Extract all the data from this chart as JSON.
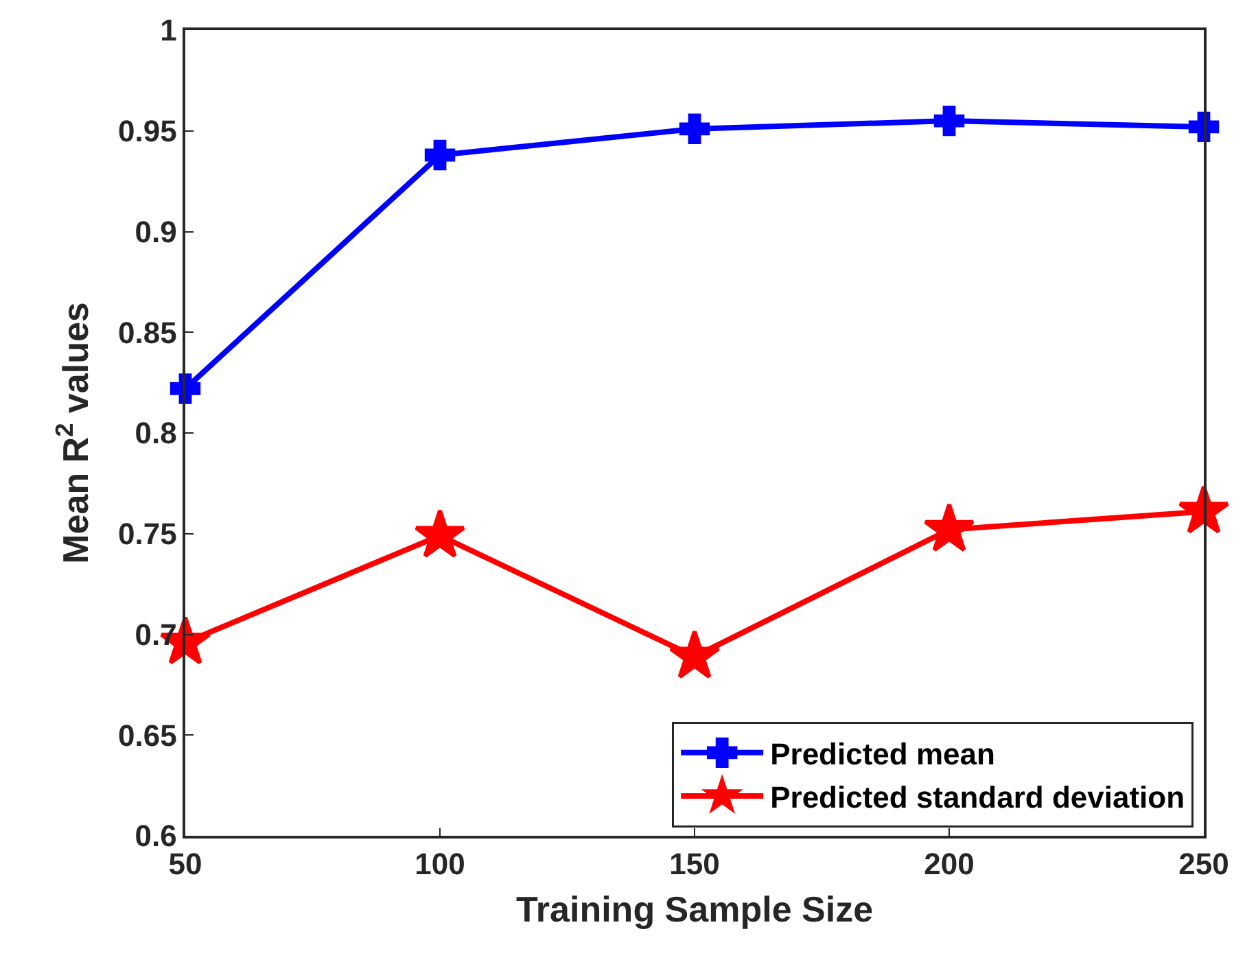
{
  "chart_data": {
    "type": "line",
    "xlabel": "Training Sample Size",
    "ylabel": "Mean R$^{2}$ values",
    "x": [
      50,
      100,
      150,
      200,
      250
    ],
    "series": [
      {
        "name": "Predicted mean",
        "color": "#0000ff",
        "marker": "cross",
        "values": [
          0.822,
          0.938,
          0.951,
          0.955,
          0.952
        ]
      },
      {
        "name": "Predicted standard deviation",
        "color": "#ff0000",
        "marker": "star",
        "values": [
          0.696,
          0.749,
          0.689,
          0.752,
          0.761
        ]
      }
    ],
    "xlim": [
      50,
      250
    ],
    "xticks": [
      50,
      100,
      150,
      200,
      250
    ],
    "ylim": [
      0.6,
      1
    ],
    "yticks": [
      0.6,
      0.65,
      0.7,
      0.75,
      0.8,
      0.85,
      0.9,
      0.95,
      1
    ],
    "grid": false,
    "legend": "bottom right",
    "line_style": "solid"
  }
}
